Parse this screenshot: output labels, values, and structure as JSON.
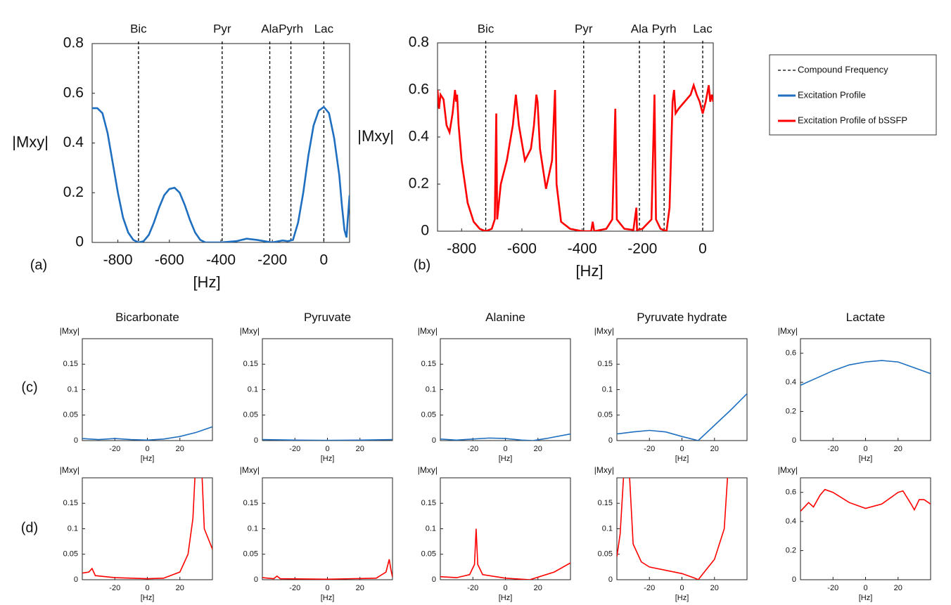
{
  "row_labels": [
    "(c)",
    "(d)"
  ],
  "legend": [
    {
      "name": "Compound Frequency",
      "color": "#000000",
      "dash": true
    },
    {
      "name": "Excitation Profile",
      "color": "#1f6fc0"
    },
    {
      "name": "Excitation Profile of bSSFP",
      "color": "#ff0000"
    }
  ],
  "chart_data": [
    {
      "type": "line",
      "panel_label": "(a)",
      "ylabel": "|Mxy|",
      "xlabel": "[Hz]",
      "xlim": [
        -900,
        100
      ],
      "ylim": [
        0,
        0.8
      ],
      "xticks": [
        -800,
        -600,
        -400,
        -200,
        0
      ],
      "yticks": [
        0,
        0.2,
        0.4,
        0.6,
        0.8
      ],
      "markers": [
        {
          "x": -720,
          "label": "Bic"
        },
        {
          "x": -395,
          "label": "Pyr"
        },
        {
          "x": -210,
          "label": "Ala"
        },
        {
          "x": -128,
          "label": "Pyrh"
        },
        {
          "x": 0,
          "label": "Lac"
        }
      ],
      "x": [
        -900,
        -880,
        -860,
        -840,
        -820,
        -800,
        -780,
        -760,
        -740,
        -720,
        -700,
        -680,
        -660,
        -640,
        -620,
        -600,
        -580,
        -560,
        -540,
        -520,
        -500,
        -480,
        -460,
        -400,
        -340,
        -300,
        -260,
        -220,
        -200,
        -160,
        -140,
        -120,
        -100,
        -80,
        -60,
        -40,
        -20,
        0,
        20,
        40,
        60,
        70,
        80,
        88,
        92,
        100
      ],
      "series": [
        {
          "color": "#1f6fc0",
          "values": [
            0.54,
            0.54,
            0.52,
            0.44,
            0.32,
            0.2,
            0.1,
            0.04,
            0.01,
            0.0,
            0.005,
            0.03,
            0.08,
            0.14,
            0.19,
            0.215,
            0.22,
            0.2,
            0.15,
            0.09,
            0.04,
            0.01,
            0.0,
            0,
            0.005,
            0.015,
            0.01,
            0.003,
            0.0,
            0.008,
            0.005,
            0.01,
            0.08,
            0.2,
            0.35,
            0.47,
            0.53,
            0.545,
            0.52,
            0.42,
            0.27,
            0.15,
            0.05,
            0.02,
            0.08,
            0.19
          ]
        }
      ]
    },
    {
      "type": "line",
      "panel_label": "(b)",
      "ylabel": "|Mxy|",
      "xlabel": "[Hz]",
      "xlim": [
        -880,
        35
      ],
      "ylim": [
        0,
        0.8
      ],
      "xticks": [
        -800,
        -600,
        -400,
        -200,
        0
      ],
      "yticks": [
        0,
        0.2,
        0.4,
        0.6,
        0.8
      ],
      "markers": [
        {
          "x": -720,
          "label": "Bic"
        },
        {
          "x": -395,
          "label": "Pyr"
        },
        {
          "x": -210,
          "label": "Ala"
        },
        {
          "x": -128,
          "label": "Pyrh"
        },
        {
          "x": 0,
          "label": "Lac"
        }
      ],
      "x": [
        -880,
        -875,
        -870,
        -860,
        -850,
        -840,
        -830,
        -822,
        -818,
        -815,
        -810,
        -800,
        -780,
        -760,
        -740,
        -720,
        -700,
        -690,
        -685,
        -682,
        -670,
        -650,
        -630,
        -620,
        -610,
        -590,
        -570,
        -560,
        -552,
        -548,
        -540,
        -520,
        -500,
        -490,
        -485,
        -470,
        -440,
        -400,
        -370,
        -365,
        -360,
        -320,
        -300,
        -290,
        -285,
        -260,
        -230,
        -220,
        -218,
        -200,
        -170,
        -160,
        -155,
        -140,
        -120,
        -110,
        -100,
        -95,
        -90,
        -80,
        -60,
        -40,
        -30,
        -20,
        -10,
        0,
        10,
        20,
        25,
        30,
        35
      ],
      "series": [
        {
          "color": "#ff0000",
          "values": [
            0.6,
            0.52,
            0.58,
            0.56,
            0.45,
            0.42,
            0.5,
            0.6,
            0.55,
            0.58,
            0.45,
            0.3,
            0.12,
            0.04,
            0.01,
            0,
            0.01,
            0.05,
            0.5,
            0.05,
            0.2,
            0.3,
            0.45,
            0.58,
            0.45,
            0.3,
            0.35,
            0.45,
            0.58,
            0.55,
            0.35,
            0.18,
            0.3,
            0.6,
            0.2,
            0.04,
            0.01,
            0,
            0,
            0.04,
            0,
            0.01,
            0.05,
            0.52,
            0.05,
            0.01,
            0.005,
            0.1,
            0.005,
            0.01,
            0.05,
            0.58,
            0.05,
            0.01,
            0.0,
            0.1,
            0.55,
            0.6,
            0.5,
            0.52,
            0.55,
            0.58,
            0.62,
            0.58,
            0.55,
            0.5,
            0.55,
            0.62,
            0.55,
            0.58,
            0.55
          ]
        }
      ]
    },
    {
      "type": "line",
      "title": "Bicarbonate",
      "ylabel": "|Mxy|",
      "xlabel": "[Hz]",
      "xlim": [
        -40,
        40
      ],
      "ylim": [
        0,
        0.2
      ],
      "xticks": [
        -20,
        0,
        20
      ],
      "yticks": [
        0,
        0.05,
        0.1,
        0.15
      ],
      "x": [
        -40,
        -30,
        -20,
        -10,
        0,
        10,
        20,
        30,
        40
      ],
      "series": [
        {
          "color": "#1f6fc0",
          "values": [
            0.004,
            0.002,
            0.004,
            0.002,
            0.001,
            0.003,
            0.008,
            0.016,
            0.027
          ]
        }
      ]
    },
    {
      "type": "line",
      "title": "Pyruvate",
      "ylabel": "|Mxy|",
      "xlabel": "[Hz]",
      "xlim": [
        -40,
        40
      ],
      "ylim": [
        0,
        0.2
      ],
      "xticks": [
        -20,
        0,
        20
      ],
      "yticks": [
        0,
        0.05,
        0.1,
        0.15
      ],
      "x": [
        -40,
        -20,
        0,
        20,
        40
      ],
      "series": [
        {
          "color": "#1f6fc0",
          "values": [
            0.002,
            0.001,
            0.0005,
            0.001,
            0.002
          ]
        }
      ]
    },
    {
      "type": "line",
      "title": "Alanine",
      "ylabel": "|Mxy|",
      "xlabel": "[Hz]",
      "xlim": [
        -40,
        40
      ],
      "ylim": [
        0,
        0.2
      ],
      "xticks": [
        -20,
        0,
        20
      ],
      "yticks": [
        0,
        0.05,
        0.1,
        0.15
      ],
      "x": [
        -40,
        -30,
        -20,
        -10,
        0,
        10,
        17,
        25,
        40
      ],
      "series": [
        {
          "color": "#1f6fc0",
          "values": [
            0.003,
            0.001,
            0.003,
            0.005,
            0.004,
            0.001,
            0.0,
            0.004,
            0.013
          ]
        }
      ]
    },
    {
      "type": "line",
      "title": "Pyruvate hydrate",
      "ylabel": "|Mxy|",
      "xlabel": "[Hz]",
      "xlim": [
        -40,
        40
      ],
      "ylim": [
        0,
        0.2
      ],
      "xticks": [
        -20,
        0,
        20
      ],
      "yticks": [
        0,
        0.05,
        0.1,
        0.15
      ],
      "x": [
        -40,
        -30,
        -20,
        -10,
        0,
        10,
        20,
        30,
        40
      ],
      "series": [
        {
          "color": "#1f6fc0",
          "values": [
            0.013,
            0.017,
            0.02,
            0.017,
            0.008,
            0.0,
            0.03,
            0.06,
            0.092
          ]
        }
      ]
    },
    {
      "type": "line",
      "title": "Lactate",
      "ylabel": "|Mxy|",
      "xlabel": "[Hz]",
      "xlim": [
        -40,
        40
      ],
      "ylim": [
        0,
        0.7
      ],
      "xticks": [
        -20,
        0,
        20
      ],
      "yticks": [
        0,
        0.2,
        0.4,
        0.6
      ],
      "x": [
        -40,
        -30,
        -20,
        -10,
        0,
        10,
        20,
        30,
        40
      ],
      "series": [
        {
          "color": "#1f6fc0",
          "values": [
            0.38,
            0.43,
            0.48,
            0.52,
            0.54,
            0.55,
            0.54,
            0.5,
            0.46
          ]
        }
      ]
    },
    {
      "type": "line",
      "ylabel": "|Mxy|",
      "xlabel": "[Hz]",
      "xlim": [
        -40,
        40
      ],
      "ylim": [
        0,
        0.2
      ],
      "xticks": [
        -20,
        0,
        20
      ],
      "yticks": [
        0,
        0.05,
        0.1,
        0.15
      ],
      "x": [
        -40,
        -36,
        -34,
        -32,
        -20,
        0,
        10,
        20,
        25,
        28,
        30,
        33,
        35,
        40
      ],
      "series": [
        {
          "color": "#ff0000",
          "values": [
            0.013,
            0.015,
            0.022,
            0.008,
            0.004,
            0.002,
            0.003,
            0.015,
            0.05,
            0.12,
            0.25,
            0.25,
            0.1,
            0.06
          ]
        }
      ]
    },
    {
      "type": "line",
      "ylabel": "|Mxy|",
      "xlabel": "[Hz]",
      "xlim": [
        -40,
        40
      ],
      "ylim": [
        0,
        0.2
      ],
      "xticks": [
        -20,
        0,
        20
      ],
      "yticks": [
        0,
        0.05,
        0.1,
        0.15
      ],
      "x": [
        -40,
        -33,
        -31,
        -29,
        0,
        30,
        36,
        38,
        39,
        40
      ],
      "series": [
        {
          "color": "#ff0000",
          "values": [
            0.004,
            0.002,
            0.007,
            0.002,
            0.001,
            0.003,
            0.015,
            0.04,
            0.02,
            0.005
          ]
        }
      ]
    },
    {
      "type": "line",
      "ylabel": "|Mxy|",
      "xlabel": "[Hz]",
      "xlim": [
        -40,
        40
      ],
      "ylim": [
        0,
        0.2
      ],
      "xticks": [
        -20,
        0,
        20
      ],
      "yticks": [
        0,
        0.05,
        0.1,
        0.15
      ],
      "x": [
        -40,
        -30,
        -22,
        -19,
        -18,
        -17,
        -14,
        0,
        15,
        30,
        40
      ],
      "series": [
        {
          "color": "#ff0000",
          "values": [
            0.006,
            0.004,
            0.01,
            0.03,
            0.1,
            0.03,
            0.01,
            0.003,
            0.0,
            0.015,
            0.033
          ]
        }
      ]
    },
    {
      "type": "line",
      "ylabel": "|Mxy|",
      "xlabel": "[Hz]",
      "xlim": [
        -40,
        40
      ],
      "ylim": [
        0,
        0.2
      ],
      "xticks": [
        -20,
        0,
        20
      ],
      "yticks": [
        0,
        0.05,
        0.1,
        0.15
      ],
      "x": [
        -40,
        -38,
        -35,
        -33,
        -30,
        -25,
        -20,
        0,
        8,
        10,
        20,
        26,
        29
      ],
      "series": [
        {
          "color": "#ff0000",
          "values": [
            0.045,
            0.09,
            0.25,
            0.25,
            0.07,
            0.035,
            0.025,
            0.012,
            0.003,
            0.0,
            0.04,
            0.1,
            0.25
          ]
        }
      ]
    },
    {
      "type": "line",
      "ylabel": "|Mxy|",
      "xlabel": "[Hz]",
      "xlim": [
        -40,
        40
      ],
      "ylim": [
        0,
        0.7
      ],
      "xticks": [
        -20,
        0,
        20
      ],
      "yticks": [
        0,
        0.2,
        0.4,
        0.6
      ],
      "x": [
        -40,
        -35,
        -32,
        -28,
        -25,
        -20,
        -10,
        0,
        10,
        20,
        23,
        28,
        30,
        33,
        36,
        40
      ],
      "series": [
        {
          "color": "#ff0000",
          "values": [
            0.47,
            0.53,
            0.5,
            0.58,
            0.62,
            0.6,
            0.53,
            0.49,
            0.52,
            0.6,
            0.61,
            0.52,
            0.48,
            0.55,
            0.55,
            0.52
          ]
        }
      ]
    }
  ]
}
